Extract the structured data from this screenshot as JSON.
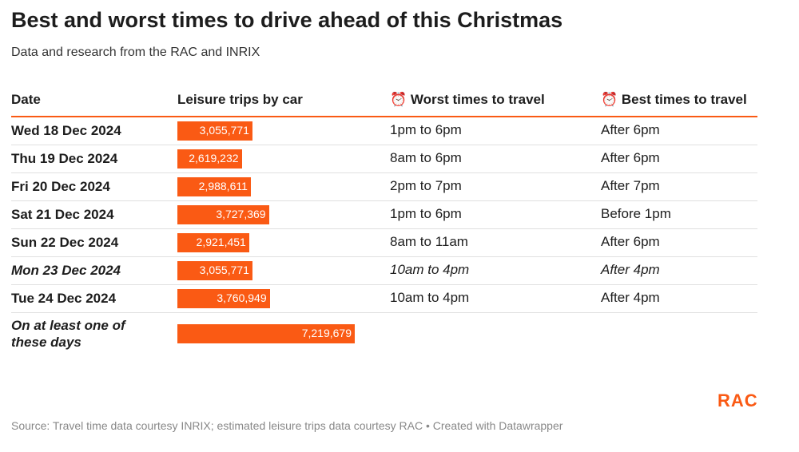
{
  "header": {
    "title": "Best and worst times to drive ahead of this Christmas",
    "subtitle": "Data and research from the RAC and INRIX"
  },
  "table": {
    "columns": [
      "Date",
      "Leisure trips by car",
      "⏰ Worst times to travel",
      "⏰ Best times to travel"
    ],
    "rows": [
      {
        "date": "Wed 18 Dec 2024",
        "trips": 3055771,
        "trips_label": "3,055,771",
        "worst": "1pm to 6pm",
        "best": "After 6pm",
        "italic": false
      },
      {
        "date": "Thu 19 Dec 2024",
        "trips": 2619232,
        "trips_label": "2,619,232",
        "worst": "8am to 6pm",
        "best": "After 6pm",
        "italic": false
      },
      {
        "date": "Fri 20 Dec 2024",
        "trips": 2988611,
        "trips_label": "2,988,611",
        "worst": "2pm to 7pm",
        "best": "After 7pm",
        "italic": false
      },
      {
        "date": "Sat 21 Dec 2024",
        "trips": 3727369,
        "trips_label": "3,727,369",
        "worst": "1pm to 6pm",
        "best": "Before 1pm",
        "italic": false
      },
      {
        "date": "Sun 22 Dec 2024",
        "trips": 2921451,
        "trips_label": "2,921,451",
        "worst": "8am to 11am",
        "best": "After 6pm",
        "italic": false
      },
      {
        "date": "Mon 23 Dec 2024",
        "trips": 3055771,
        "trips_label": "3,055,771",
        "worst": "10am to 4pm",
        "best": "After 4pm",
        "italic": true
      },
      {
        "date": "Tue 24 Dec 2024",
        "trips": 3760949,
        "trips_label": "3,760,949",
        "worst": "10am to 4pm",
        "best": "After 4pm",
        "italic": false
      },
      {
        "date": "On at least one of these days",
        "trips": 7219679,
        "trips_label": "7,219,679",
        "italic": true
      }
    ],
    "bar_color": "#fa5a14"
  },
  "footer": {
    "source": "Source: Travel time data courtesy INRIX; estimated leisure trips data courtesy RAC • Created with Datawrapper",
    "logo": "RAC"
  }
}
